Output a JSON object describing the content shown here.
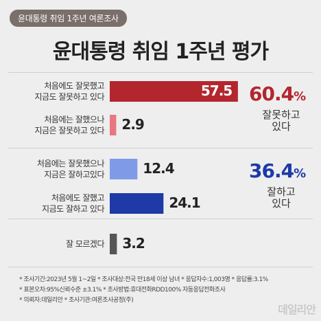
{
  "badge": "윤대통령 취임 1주년 여론조사",
  "chart_data": {
    "type": "bar",
    "title": "윤대통령 취임 1주년 평가",
    "categories": [
      "처음에도 잘못했고\n지금도 잘못하고 있다",
      "처음에는 잘했으나\n지금은 잘못하고 있다",
      "처음에는 잘못했으나\n지금은 잘하고있다",
      "처음에도 잘했고\n지금도 잘하고 있다",
      "잘 모르겠다"
    ],
    "values": [
      57.5,
      2.9,
      12.4,
      24.1,
      3.2
    ],
    "value_labels": [
      "57.5",
      "2.9",
      "12.4",
      "24.1",
      "3.2"
    ],
    "colors": [
      "#b3262e",
      "#e8787f",
      "#7f9be8",
      "#1d3aa7",
      "#555555"
    ],
    "xlim": [
      0,
      60
    ],
    "groups": [
      {
        "total": "60.4",
        "unit": "%",
        "label": "잘못하고\n있다",
        "color": "#b3262e"
      },
      {
        "total": "36.4",
        "unit": "%",
        "label": "잘하고\n있다",
        "color": "#1d3aa7"
      }
    ]
  },
  "footer": {
    "line1": "* 조사기간:2023년 5월 1~2일  * 조사대상:전국 만18세 이상 남녀  * 응답자수:1,003명  * 응답률:3.1%",
    "line2": "* 표본오차:95%신뢰수준 ±3.1%  * 조사방법:휴대전화RDD100% 자동응답전화조사",
    "line3": "* 의뢰자:데일리안  * 조사기관:여론조사공정(주)"
  },
  "logo": "데일리안"
}
